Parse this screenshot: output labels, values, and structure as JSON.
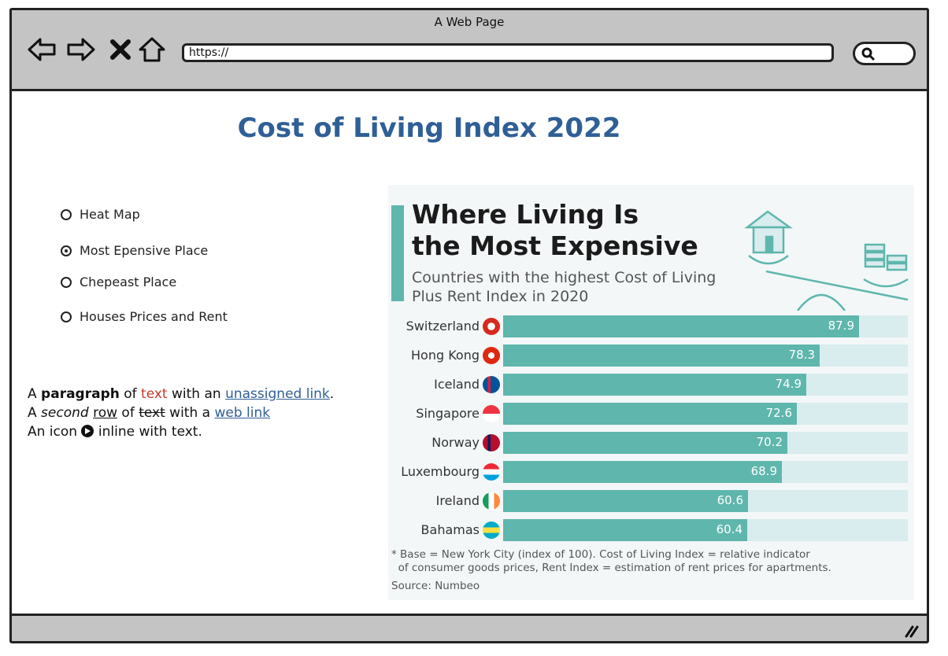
{
  "window": {
    "title": "A Web Page",
    "url": "https://"
  },
  "page": {
    "title": "Cost of Living Index 2022"
  },
  "radios": [
    {
      "label": "Heat Map",
      "selected": false
    },
    {
      "label": "Most Epensive Place",
      "selected": true
    },
    {
      "label": "Chepeast Place",
      "selected": false
    },
    {
      "label": "Houses Prices and Rent",
      "selected": false
    }
  ],
  "paragraph": {
    "l1_a": "A ",
    "l1_bold": "paragraph",
    "l1_b": " of ",
    "l1_red": "text",
    "l1_c": " with an ",
    "l1_link": "unassigned link",
    "l1_d": ".",
    "l2_a": "A ",
    "l2_italic": "second",
    "l2_b": " ",
    "l2_und": "row",
    "l2_c": " of ",
    "l2_strike": "text",
    "l2_d": " with a ",
    "l2_link": "web link",
    "l3_a": "An icon ",
    "l3_b": " inline with text."
  },
  "infographic": {
    "title_line1": "Where Living Is",
    "title_line2": "the Most Expensive",
    "subtitle_line1": "Countries with the highest Cost of Living",
    "subtitle_line2": "Plus Rent Index in 2020",
    "note_line1": "* Base = New York City (index of 100). Cost of Living Index = relative indicator",
    "note_line2": "  of consumer goods prices, Rent Index = estimation of rent prices for apartments.",
    "source": "Source: Numbeo",
    "accent_color": "#5fb6ad"
  },
  "chart_data": {
    "type": "bar",
    "orientation": "horizontal",
    "categories": [
      "Switzerland",
      "Hong Kong",
      "Iceland",
      "Singapore",
      "Norway",
      "Luxembourg",
      "Ireland",
      "Bahamas"
    ],
    "values": [
      87.9,
      78.3,
      74.9,
      72.6,
      70.2,
      68.9,
      60.6,
      60.4
    ],
    "value_labels": [
      "87.9",
      "78.3",
      "74.9",
      "72.6",
      "70.2",
      "68.9",
      "60.6",
      "60.4"
    ],
    "xlim": [
      0,
      100
    ],
    "grid": false,
    "flags": [
      "switzerland-flag-icon",
      "hong-kong-flag-icon",
      "iceland-flag-icon",
      "singapore-flag-icon",
      "norway-flag-icon",
      "luxembourg-flag-icon",
      "ireland-flag-icon",
      "bahamas-flag-icon"
    ]
  }
}
